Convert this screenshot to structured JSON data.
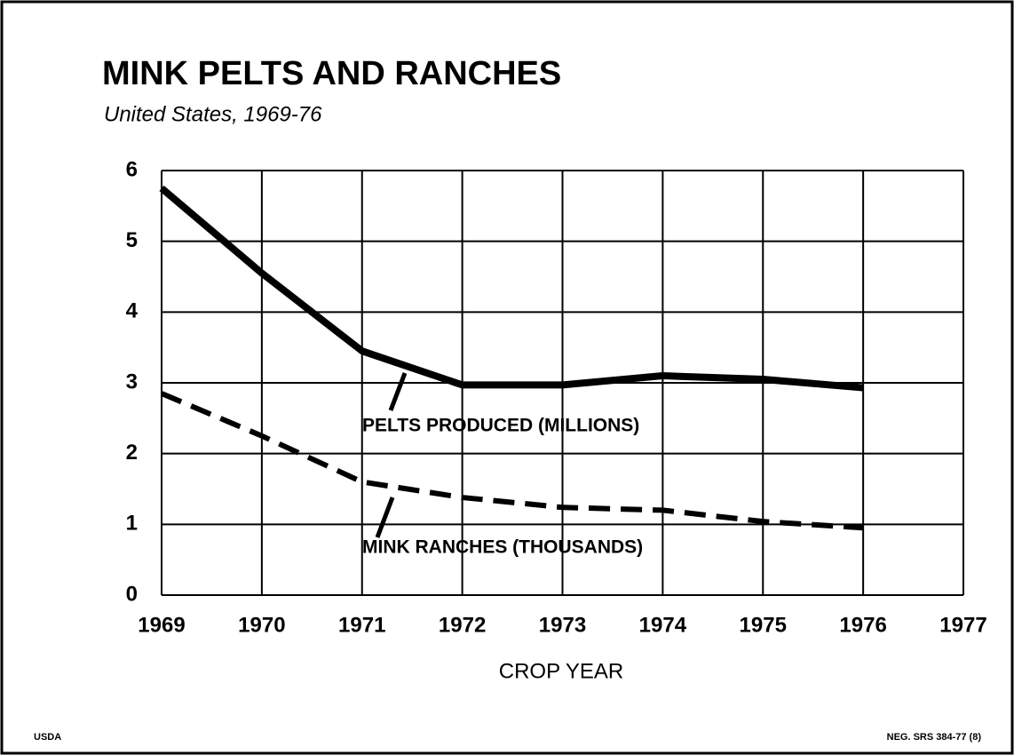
{
  "chart_data": {
    "type": "line",
    "title": "MINK PELTS AND RANCHES",
    "subtitle": "United States, 1969-76",
    "x_label": "CROP YEAR",
    "x": [
      1969,
      1970,
      1971,
      1972,
      1973,
      1974,
      1975,
      1976
    ],
    "series": [
      {
        "name": "PELTS PRODUCED (MILLIONS)",
        "color": "#000000",
        "style": "solid",
        "values": [
          5.75,
          4.55,
          3.45,
          2.97,
          2.97,
          3.1,
          3.05,
          2.93
        ]
      },
      {
        "name": "MINK RANCHES (THOUSANDS)",
        "color": "#000000",
        "style": "dashed",
        "values": [
          2.85,
          2.25,
          1.6,
          1.38,
          1.24,
          1.2,
          1.04,
          0.95
        ]
      }
    ],
    "xlim": [
      1969,
      1977
    ],
    "xticks": [
      1969,
      1970,
      1971,
      1972,
      1973,
      1974,
      1975,
      1976,
      1977
    ],
    "ylim": [
      0,
      6
    ],
    "yticks": [
      0,
      1,
      2,
      3,
      4,
      5,
      6
    ],
    "grid": true,
    "footer_left": "USDA",
    "footer_right": "NEG. SRS 384-77 (8)"
  }
}
